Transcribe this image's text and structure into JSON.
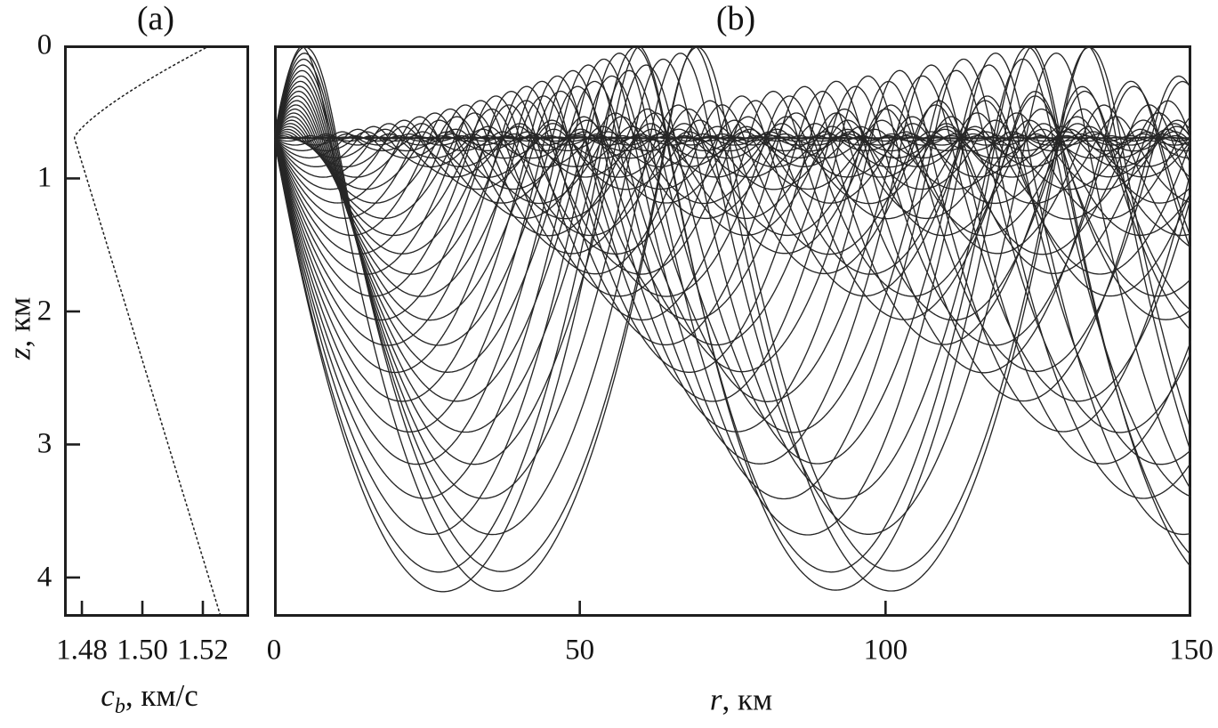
{
  "figure": {
    "background": "#ffffff",
    "text_color": "#141414",
    "line_color": "#1e1e1e",
    "ray_color": "#262626"
  },
  "chart_data": [
    {
      "id": "a",
      "type": "line",
      "title": "(a)",
      "xlabel": {
        "var": "c",
        "sub": "b",
        "rest": ", км/с"
      },
      "ylabel": {
        "var": "z",
        "rest": ", км"
      },
      "xlim": [
        1.4741,
        1.5353
      ],
      "ylim": [
        0,
        4.295
      ],
      "y_axis_downward": true,
      "xticks": [
        {
          "v": 1.48,
          "label": "1.48"
        },
        {
          "v": 1.5,
          "label": "1.50"
        },
        {
          "v": 1.52,
          "label": "1.52"
        }
      ],
      "yticks": [
        {
          "v": 0,
          "label": "0"
        },
        {
          "v": 1,
          "label": "1"
        },
        {
          "v": 2,
          "label": "2"
        },
        {
          "v": 3,
          "label": "3"
        },
        {
          "v": 4,
          "label": "4"
        }
      ],
      "profile_model": {
        "z_axis_km": 0.695,
        "c_min_kms": 1.4775,
        "c_surface_kms": 1.5225,
        "upper_shape_exponent": 1.3,
        "deep_gradient_kms_per_km": 0.013454,
        "z_bottom_km": 4.295,
        "c_bottom_kms": 1.5259
      },
      "profile_points_z_c": [
        [
          0.0,
          1.5225
        ],
        [
          0.1,
          1.5143
        ],
        [
          0.2,
          1.5065
        ],
        [
          0.3,
          1.4991
        ],
        [
          0.4,
          1.4923
        ],
        [
          0.5,
          1.4861
        ],
        [
          0.6,
          1.4809
        ],
        [
          0.695,
          1.4775
        ],
        [
          1.0,
          1.4816
        ],
        [
          1.5,
          1.4883
        ],
        [
          2.0,
          1.4951
        ],
        [
          2.5,
          1.5018
        ],
        [
          3.0,
          1.5085
        ],
        [
          3.5,
          1.5152
        ],
        [
          4.0,
          1.522
        ],
        [
          4.295,
          1.5259
        ]
      ]
    },
    {
      "id": "b",
      "type": "line",
      "title": "(b)",
      "xlabel": {
        "var": "r",
        "rest": ", км"
      },
      "xlim": [
        0,
        150
      ],
      "ylim": [
        0,
        4.295
      ],
      "xticks": [
        {
          "v": 0,
          "label": "0"
        },
        {
          "v": 50,
          "label": "50"
        },
        {
          "v": 100,
          "label": "100"
        },
        {
          "v": 150,
          "label": "150"
        }
      ],
      "source": {
        "r_km": 0,
        "z_km": 0.695
      },
      "ray_fan": {
        "surface_reflection": true,
        "deepest_turning_km": 4.11,
        "angles_deg": [
          -14.1,
          -13.8,
          -13.2,
          -12.6,
          -12.0,
          -11.4,
          -10.8,
          -10.2,
          -9.6,
          -9.0,
          -8.4,
          -7.8,
          -7.2,
          -6.6,
          -6.0,
          -5.4,
          -4.8,
          -4.2,
          -3.6,
          -3.0,
          -2.4,
          -1.8,
          -1.2,
          -0.6,
          0,
          0.6,
          1.2,
          1.8,
          2.4,
          3.0,
          3.6,
          4.2,
          4.8,
          5.4,
          6.0,
          6.6,
          7.2,
          7.8,
          8.4,
          9.0,
          9.6,
          10.2,
          10.8,
          11.4,
          12.0,
          12.6,
          13.2,
          13.8,
          14.1
        ]
      }
    }
  ]
}
